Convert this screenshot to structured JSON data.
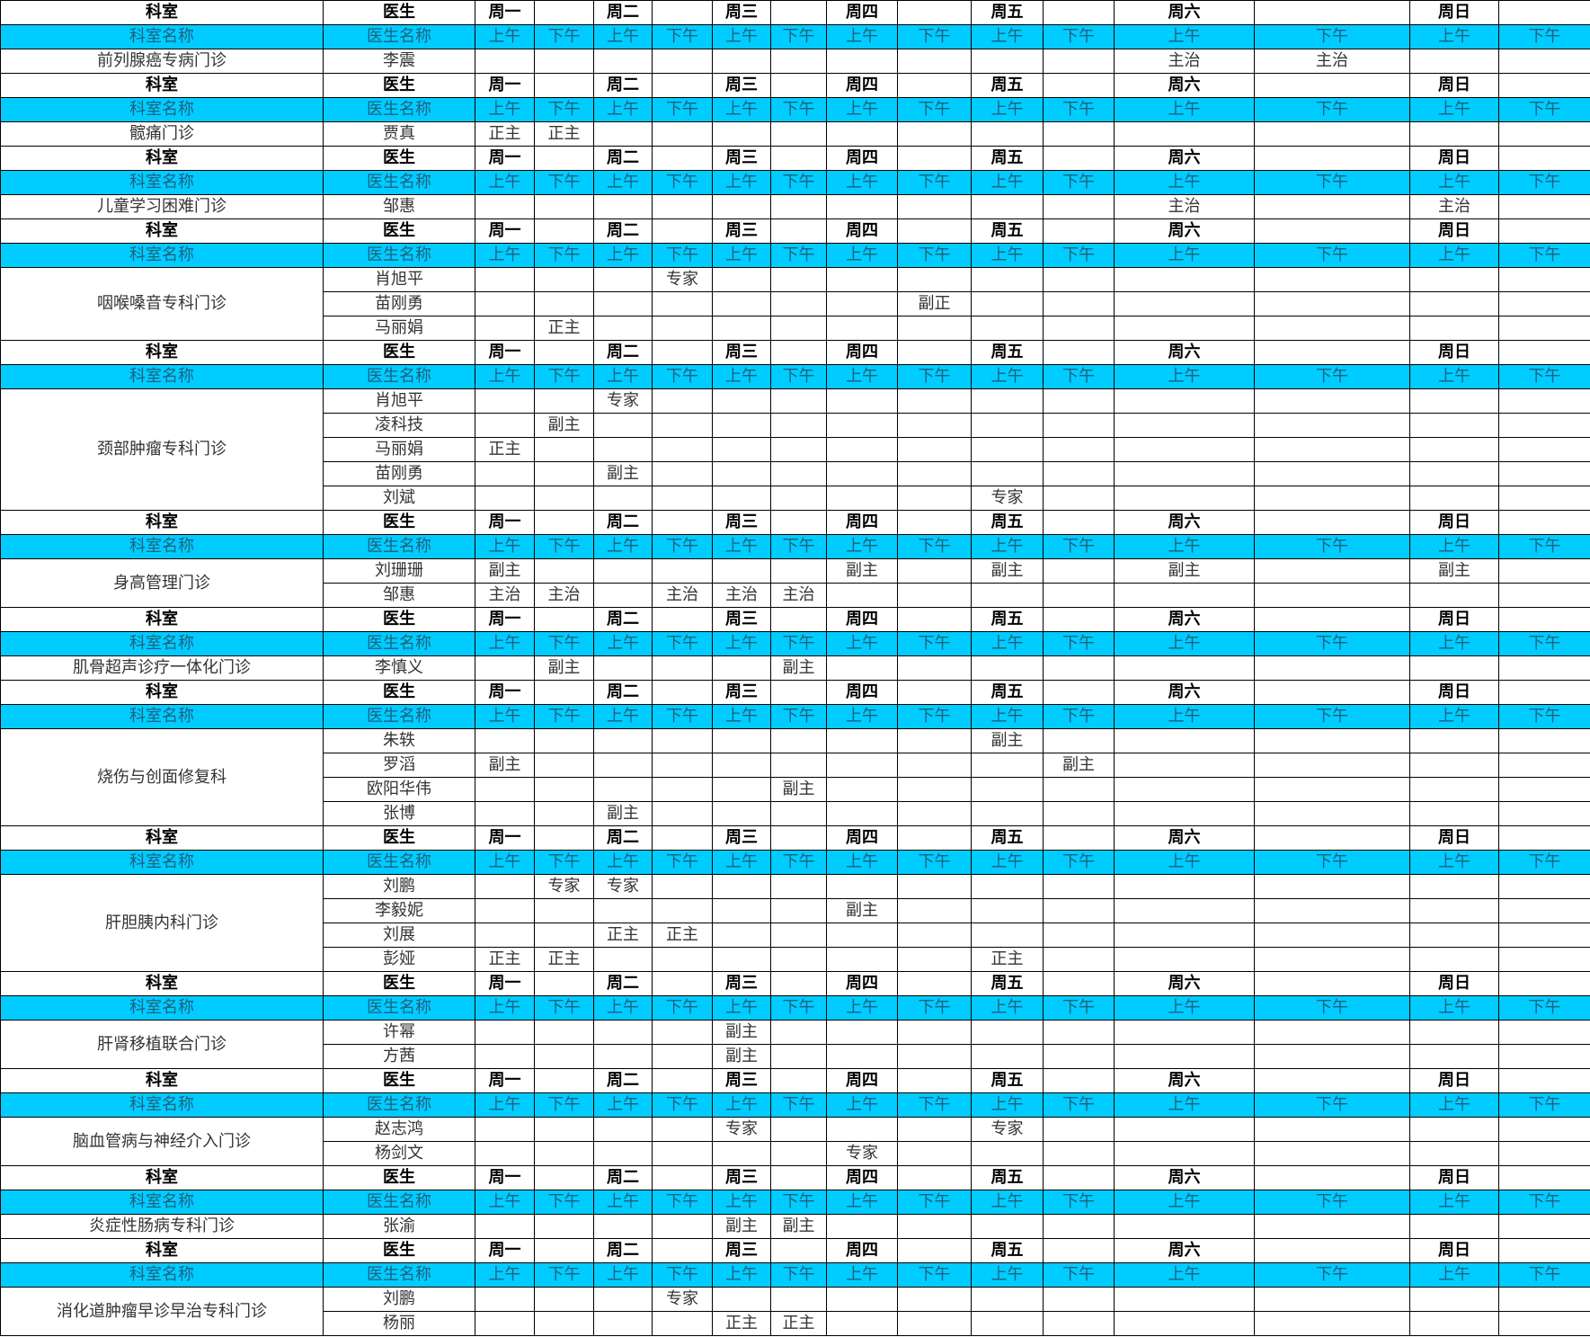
{
  "colors": {
    "subheader_bg": "#00ccff",
    "border": "#000000"
  },
  "header": [
    "科室",
    "医生",
    "周一",
    "",
    "周二",
    "",
    "周三",
    "",
    "周四",
    "",
    "周五",
    "",
    "周六",
    "",
    "周日",
    ""
  ],
  "subheader": [
    "科室名称",
    "医生名称",
    "上午",
    "下午",
    "上午",
    "下午",
    "上午",
    "下午",
    "上午",
    "下午",
    "上午",
    "下午",
    "上午",
    "下午",
    "上午",
    "下午"
  ],
  "blocks": [
    {
      "dept": "前列腺癌专病门诊",
      "doctors": [
        {
          "name": "李震",
          "slots": [
            "",
            "",
            "",
            "",
            "",
            "",
            "",
            "",
            "",
            "",
            "主治",
            "主治",
            "",
            ""
          ]
        }
      ]
    },
    {
      "dept": "髋痛门诊",
      "doctors": [
        {
          "name": "贾真",
          "slots": [
            "正主",
            "正主",
            "",
            "",
            "",
            "",
            "",
            "",
            "",
            "",
            "",
            "",
            "",
            ""
          ]
        }
      ]
    },
    {
      "dept": "儿童学习困难门诊",
      "doctors": [
        {
          "name": "邹惠",
          "slots": [
            "",
            "",
            "",
            "",
            "",
            "",
            "",
            "",
            "",
            "",
            "主治",
            "",
            "主治",
            ""
          ]
        }
      ]
    },
    {
      "dept": "咽喉嗓音专科门诊",
      "doctors": [
        {
          "name": "肖旭平",
          "slots": [
            "",
            "",
            "",
            "专家",
            "",
            "",
            "",
            "",
            "",
            "",
            "",
            "",
            "",
            ""
          ]
        },
        {
          "name": "苗刚勇",
          "slots": [
            "",
            "",
            "",
            "",
            "",
            "",
            "",
            "副正",
            "",
            "",
            "",
            "",
            "",
            ""
          ]
        },
        {
          "name": "马丽娟",
          "slots": [
            "",
            "正主",
            "",
            "",
            "",
            "",
            "",
            "",
            "",
            "",
            "",
            "",
            "",
            ""
          ]
        }
      ]
    },
    {
      "dept": "颈部肿瘤专科门诊",
      "doctors": [
        {
          "name": "肖旭平",
          "slots": [
            "",
            "",
            "专家",
            "",
            "",
            "",
            "",
            "",
            "",
            "",
            "",
            "",
            "",
            ""
          ]
        },
        {
          "name": "凌科技",
          "slots": [
            "",
            "副主",
            "",
            "",
            "",
            "",
            "",
            "",
            "",
            "",
            "",
            "",
            "",
            ""
          ]
        },
        {
          "name": "马丽娟",
          "slots": [
            "正主",
            "",
            "",
            "",
            "",
            "",
            "",
            "",
            "",
            "",
            "",
            "",
            "",
            ""
          ]
        },
        {
          "name": "苗刚勇",
          "slots": [
            "",
            "",
            "副主",
            "",
            "",
            "",
            "",
            "",
            "",
            "",
            "",
            "",
            "",
            ""
          ]
        },
        {
          "name": "刘斌",
          "slots": [
            "",
            "",
            "",
            "",
            "",
            "",
            "",
            "",
            "专家",
            "",
            "",
            "",
            "",
            ""
          ]
        }
      ]
    },
    {
      "dept": "身高管理门诊",
      "doctors": [
        {
          "name": "刘珊珊",
          "slots": [
            "副主",
            "",
            "",
            "",
            "",
            "",
            "副主",
            "",
            "副主",
            "",
            "副主",
            "",
            "副主",
            ""
          ]
        },
        {
          "name": "邹惠",
          "slots": [
            "主治",
            "主治",
            "",
            "主治",
            "主治",
            "主治",
            "",
            "",
            "",
            "",
            "",
            "",
            "",
            ""
          ]
        }
      ]
    },
    {
      "dept": "肌骨超声诊疗一体化门诊",
      "doctors": [
        {
          "name": "李慎义",
          "slots": [
            "",
            "副主",
            "",
            "",
            "",
            "副主",
            "",
            "",
            "",
            "",
            "",
            "",
            "",
            ""
          ]
        }
      ]
    },
    {
      "dept": "烧伤与创面修复科",
      "doctors": [
        {
          "name": "朱轶",
          "slots": [
            "",
            "",
            "",
            "",
            "",
            "",
            "",
            "",
            "副主",
            "",
            "",
            "",
            "",
            ""
          ]
        },
        {
          "name": "罗滔",
          "slots": [
            "副主",
            "",
            "",
            "",
            "",
            "",
            "",
            "",
            "",
            "副主",
            "",
            "",
            "",
            ""
          ]
        },
        {
          "name": "欧阳华伟",
          "slots": [
            "",
            "",
            "",
            "",
            "",
            "副主",
            "",
            "",
            "",
            "",
            "",
            "",
            "",
            ""
          ]
        },
        {
          "name": "张博",
          "slots": [
            "",
            "",
            "副主",
            "",
            "",
            "",
            "",
            "",
            "",
            "",
            "",
            "",
            "",
            ""
          ]
        }
      ]
    },
    {
      "dept": "肝胆胰内科门诊",
      "doctors": [
        {
          "name": "刘鹏",
          "slots": [
            "",
            "专家",
            "专家",
            "",
            "",
            "",
            "",
            "",
            "",
            "",
            "",
            "",
            "",
            ""
          ]
        },
        {
          "name": "李毅妮",
          "slots": [
            "",
            "",
            "",
            "",
            "",
            "",
            "副主",
            "",
            "",
            "",
            "",
            "",
            "",
            ""
          ]
        },
        {
          "name": "刘展",
          "slots": [
            "",
            "",
            "正主",
            "正主",
            "",
            "",
            "",
            "",
            "",
            "",
            "",
            "",
            "",
            ""
          ]
        },
        {
          "name": "彭娅",
          "slots": [
            "正主",
            "正主",
            "",
            "",
            "",
            "",
            "",
            "",
            "正主",
            "",
            "",
            "",
            "",
            ""
          ]
        }
      ]
    },
    {
      "dept": "肝肾移植联合门诊",
      "doctors": [
        {
          "name": "许幂",
          "slots": [
            "",
            "",
            "",
            "",
            "副主",
            "",
            "",
            "",
            "",
            "",
            "",
            "",
            "",
            ""
          ]
        },
        {
          "name": "方茜",
          "slots": [
            "",
            "",
            "",
            "",
            "副主",
            "",
            "",
            "",
            "",
            "",
            "",
            "",
            "",
            ""
          ]
        }
      ]
    },
    {
      "dept": "脑血管病与神经介入门诊",
      "doctors": [
        {
          "name": "赵志鸿",
          "slots": [
            "",
            "",
            "",
            "",
            "专家",
            "",
            "",
            "",
            "专家",
            "",
            "",
            "",
            "",
            ""
          ]
        },
        {
          "name": "杨剑文",
          "slots": [
            "",
            "",
            "",
            "",
            "",
            "",
            "专家",
            "",
            "",
            "",
            "",
            "",
            "",
            ""
          ]
        }
      ]
    },
    {
      "dept": "炎症性肠病专科门诊",
      "doctors": [
        {
          "name": "张渝",
          "slots": [
            "",
            "",
            "",
            "",
            "副主",
            "副主",
            "",
            "",
            "",
            "",
            "",
            "",
            "",
            ""
          ]
        }
      ]
    },
    {
      "dept": "消化道肿瘤早诊早治专科门诊",
      "doctors": [
        {
          "name": "刘鹏",
          "slots": [
            "",
            "",
            "",
            "专家",
            "",
            "",
            "",
            "",
            "",
            "",
            "",
            "",
            "",
            ""
          ]
        },
        {
          "name": "杨丽",
          "slots": [
            "",
            "",
            "",
            "",
            "正主",
            "正主",
            "",
            "",
            "",
            "",
            "",
            "",
            "",
            ""
          ]
        }
      ]
    }
  ]
}
